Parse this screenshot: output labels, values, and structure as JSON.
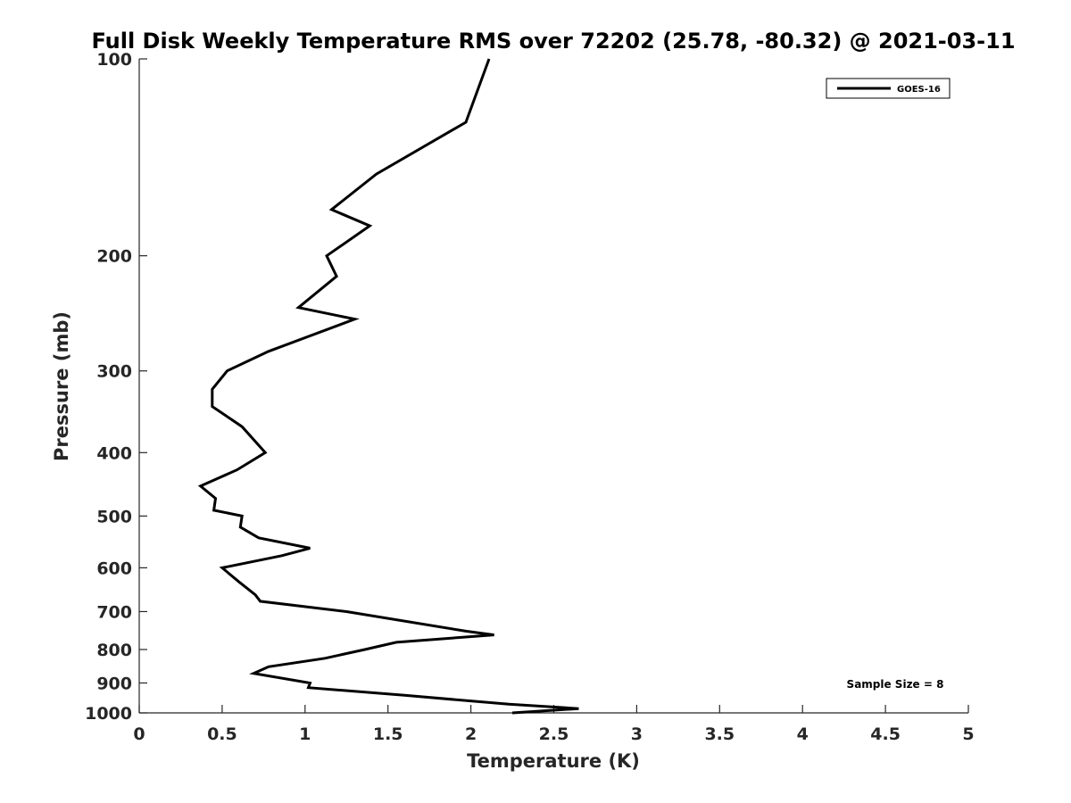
{
  "chart_data": {
    "type": "line",
    "title": "Full Disk Weekly Temperature RMS over 72202 (25.78, -80.32) @ 2021-03-11",
    "xlabel": "Temperature (K)",
    "ylabel": "Pressure (mb)",
    "xlim": [
      0,
      5
    ],
    "ylim": [
      100,
      1000
    ],
    "y_scale": "log",
    "y_reversed": true,
    "x_ticks": [
      "0",
      "0.5",
      "1",
      "1.5",
      "2",
      "2.5",
      "3",
      "3.5",
      "4",
      "4.5",
      "5"
    ],
    "y_ticks": [
      "100",
      "200",
      "300",
      "400",
      "500",
      "600",
      "700",
      "800",
      "900",
      "1000"
    ],
    "grid": false,
    "legend_position": "top-right",
    "annotation": "Sample Size = 8",
    "line_color": "#000000",
    "series": [
      {
        "name": "GOES-16",
        "points": [
          [
            2.11,
            100
          ],
          [
            1.97,
            125
          ],
          [
            1.43,
            150
          ],
          [
            1.16,
            170
          ],
          [
            1.39,
            180
          ],
          [
            1.13,
            200
          ],
          [
            1.19,
            215
          ],
          [
            0.96,
            240
          ],
          [
            1.3,
            250
          ],
          [
            0.78,
            280
          ],
          [
            0.53,
            300
          ],
          [
            0.44,
            320
          ],
          [
            0.44,
            340
          ],
          [
            0.62,
            365
          ],
          [
            0.76,
            400
          ],
          [
            0.59,
            425
          ],
          [
            0.37,
            450
          ],
          [
            0.46,
            470
          ],
          [
            0.45,
            490
          ],
          [
            0.62,
            500
          ],
          [
            0.61,
            520
          ],
          [
            0.72,
            540
          ],
          [
            1.03,
            560
          ],
          [
            0.86,
            575
          ],
          [
            0.5,
            600
          ],
          [
            0.6,
            630
          ],
          [
            0.7,
            660
          ],
          [
            0.73,
            675
          ],
          [
            1.25,
            700
          ],
          [
            1.97,
            750
          ],
          [
            2.14,
            760
          ],
          [
            1.55,
            780
          ],
          [
            1.36,
            800
          ],
          [
            1.12,
            825
          ],
          [
            0.78,
            850
          ],
          [
            0.69,
            870
          ],
          [
            1.03,
            900
          ],
          [
            1.02,
            915
          ],
          [
            1.6,
            940
          ],
          [
            2.23,
            970
          ],
          [
            2.65,
            985
          ],
          [
            2.52,
            990
          ],
          [
            2.25,
            1000
          ]
        ]
      }
    ]
  }
}
